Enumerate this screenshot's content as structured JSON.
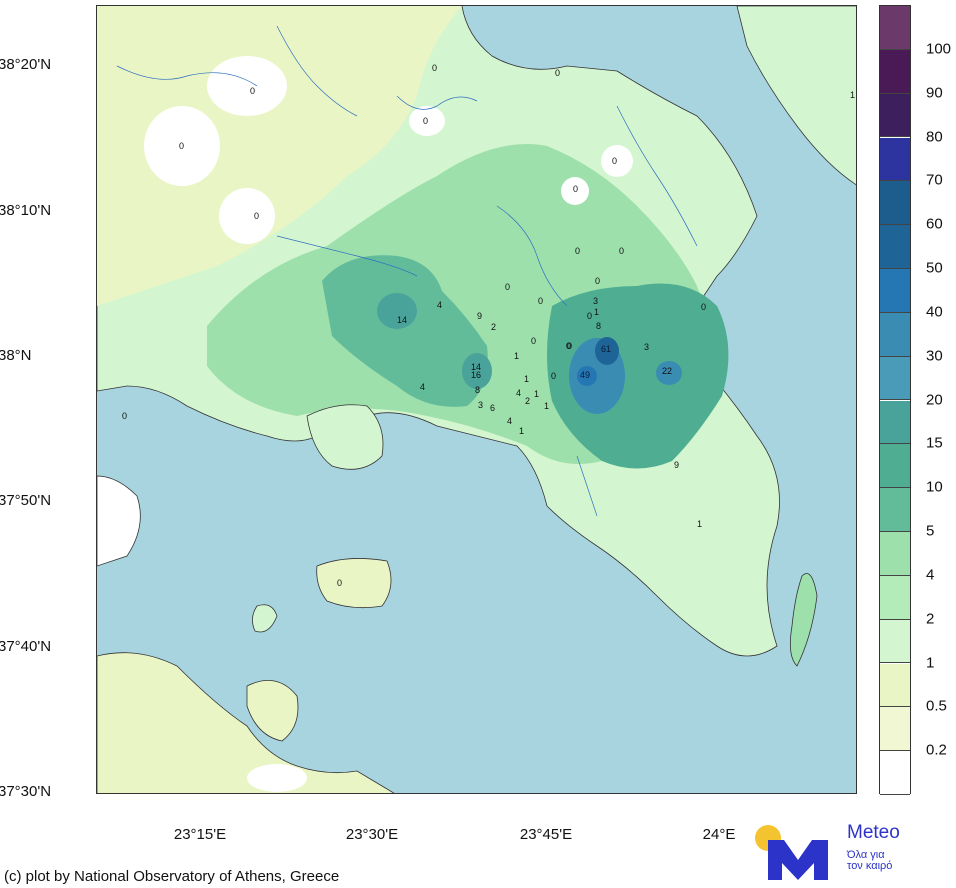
{
  "map": {
    "lat_labels": [
      "38°20'N",
      "38°10'N",
      "38°N",
      "37°50'N",
      "37°40'N",
      "37°30'N"
    ],
    "lon_labels": [
      "23°15'E",
      "23°30'E",
      "23°45'E",
      "24°E"
    ],
    "station_values": [
      "0",
      "0",
      "0",
      "0",
      "0",
      "0",
      "0",
      "0",
      "0",
      "0",
      "0",
      "0",
      "0",
      "0",
      "0",
      "0",
      "0",
      "0",
      "0",
      "1",
      "4",
      "14",
      "2",
      "9",
      "14",
      "16",
      "8",
      "3",
      "6",
      "4",
      "1",
      "1",
      "4",
      "2",
      "1",
      "1",
      "1",
      "0",
      "3",
      "1",
      "8",
      "0",
      "61",
      "3",
      "49",
      "22",
      "9",
      "1",
      "4"
    ]
  },
  "colorbar": {
    "labels": [
      "100",
      "90",
      "80",
      "70",
      "60",
      "50",
      "40",
      "30",
      "20",
      "15",
      "10",
      "5",
      "4",
      "2",
      "1",
      "0.5",
      "0.2"
    ],
    "colors": [
      "#6b3a6b",
      "#4a1a57",
      "#3c1f5c",
      "#2d34a0",
      "#1d5d8e",
      "#1f6496",
      "#2577b3",
      "#3a8cb3",
      "#4a9bb8",
      "#4aa39a",
      "#4fae91",
      "#62bc9a",
      "#9ee0ac",
      "#b4ecb9",
      "#d3f5cf",
      "#eaf5c5",
      "#f1f6d3",
      "#ffffff"
    ]
  },
  "credit": "(c) plot by National Observatory of Athens, Greece",
  "logo": {
    "name": "Meteo",
    "slogan_line1": "Όλα για",
    "slogan_line2": "τον καιρό"
  }
}
